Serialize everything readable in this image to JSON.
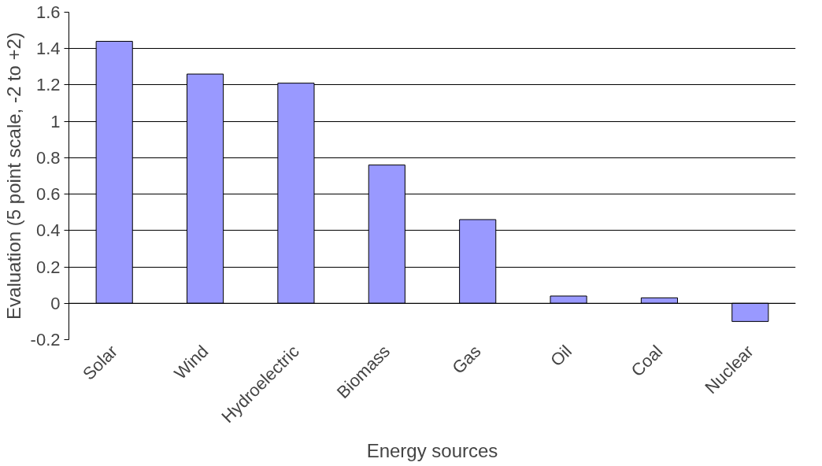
{
  "chart_data": {
    "type": "bar",
    "xlabel": "Energy sources",
    "ylabel": "Evaluation (5 point scale, -2 to +2)",
    "categories": [
      "Solar",
      "Wind",
      "Hydroelectric",
      "Biomass",
      "Gas",
      "Oil",
      "Coal",
      "Nuclear"
    ],
    "values": [
      1.44,
      1.26,
      1.21,
      0.76,
      0.46,
      0.04,
      0.03,
      -0.1
    ],
    "color": "#9999ff",
    "ylim": [
      -0.2,
      1.6
    ],
    "yticks": [
      -0.2,
      0,
      0.2,
      0.4,
      0.6,
      0.8,
      1,
      1.2,
      1.4,
      1.6
    ],
    "grid": "y"
  }
}
